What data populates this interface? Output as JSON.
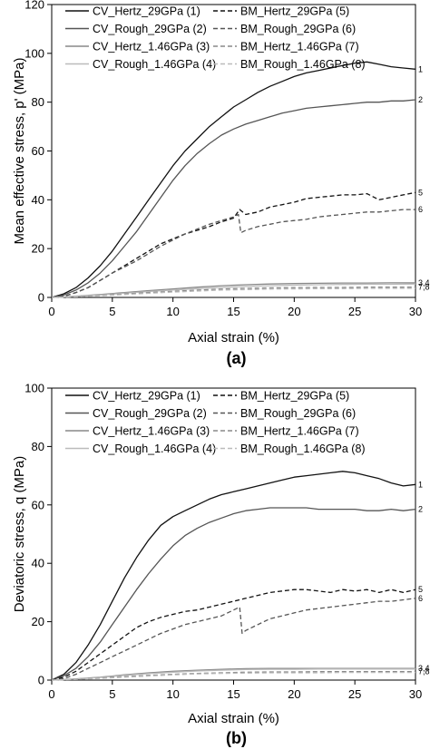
{
  "chart_data": [
    {
      "type": "line",
      "panel_label": "(a)",
      "xlabel": "Axial strain (%)",
      "ylabel": "Mean effective stress, p' (MPa)",
      "xlim": [
        0,
        30
      ],
      "ylim": [
        0,
        120
      ],
      "xticks": [
        0,
        5,
        10,
        15,
        20,
        25,
        30
      ],
      "yticks": [
        0,
        20,
        40,
        60,
        80,
        100,
        120
      ],
      "grid": false,
      "legend_position": "top",
      "series": [
        {
          "name": "CV_Hertz_29GPa",
          "num": "(1)",
          "end_label": "1",
          "color": "#111111",
          "dash": "",
          "x": [
            0,
            1,
            2,
            3,
            4,
            5,
            6,
            7,
            8,
            9,
            10,
            11,
            12,
            13,
            14,
            15,
            16,
            17,
            18,
            19,
            20,
            21,
            22,
            23,
            24,
            25,
            26,
            27,
            28,
            29,
            30
          ],
          "y": [
            0,
            1.5,
            4,
            8,
            13,
            19,
            26,
            33,
            40,
            47,
            54,
            60,
            65,
            70,
            74,
            78,
            81,
            84,
            86.5,
            88.5,
            90.5,
            92,
            93,
            94,
            95,
            96,
            96.5,
            95.5,
            94.5,
            94,
            93.5
          ]
        },
        {
          "name": "CV_Rough_29GPa",
          "num": "(2)",
          "end_label": "2",
          "color": "#555555",
          "dash": "",
          "x": [
            0,
            1,
            2,
            3,
            4,
            5,
            6,
            7,
            8,
            9,
            10,
            11,
            12,
            13,
            14,
            15,
            16,
            17,
            18,
            19,
            20,
            21,
            22,
            23,
            24,
            25,
            26,
            27,
            28,
            29,
            30
          ],
          "y": [
            0,
            1,
            3,
            6,
            10,
            15,
            21,
            27,
            34,
            41,
            48,
            54,
            59,
            63,
            66.5,
            69,
            71,
            72.5,
            74,
            75.5,
            76.5,
            77.5,
            78,
            78.5,
            79,
            79.5,
            80,
            80,
            80.5,
            80.5,
            81
          ]
        },
        {
          "name": "CV_Hertz_1.46GPa",
          "num": "(3)",
          "end_label": "3,4",
          "color": "#888888",
          "dash": "",
          "x": [
            0,
            2,
            4,
            6,
            8,
            10,
            12,
            14,
            16,
            18,
            20,
            22,
            24,
            26,
            28,
            30
          ],
          "y": [
            0,
            0.5,
            1.2,
            2,
            2.8,
            3.5,
            4.2,
            4.8,
            5.2,
            5.5,
            5.7,
            5.8,
            5.9,
            5.9,
            6,
            6
          ]
        },
        {
          "name": "CV_Rough_1.46GPa",
          "num": "(4)",
          "end_label": "",
          "color": "#bbbbbb",
          "dash": "",
          "x": [
            0,
            2,
            4,
            6,
            8,
            10,
            12,
            14,
            16,
            18,
            20,
            22,
            24,
            26,
            28,
            30
          ],
          "y": [
            0,
            0.4,
            1,
            1.7,
            2.4,
            3,
            3.6,
            4.1,
            4.5,
            4.8,
            5,
            5.2,
            5.3,
            5.4,
            5.4,
            5.5
          ]
        },
        {
          "name": "BM_Hertz_29GPa",
          "num": "(5)",
          "end_label": "5",
          "color": "#111111",
          "dash": "5,3",
          "x": [
            0,
            1,
            2,
            3,
            4,
            5,
            6,
            7,
            8,
            9,
            10,
            11,
            12,
            13,
            14,
            15,
            15.5,
            16,
            17,
            18,
            19,
            20,
            21,
            22,
            23,
            24,
            25,
            26,
            27,
            28,
            29,
            30
          ],
          "y": [
            0,
            0.5,
            2,
            4,
            7,
            10,
            13,
            16,
            19,
            22,
            24,
            26,
            27.5,
            29,
            31,
            32.5,
            36,
            34,
            35,
            37,
            38,
            39,
            40.5,
            41,
            41.5,
            42,
            42,
            42.5,
            40,
            41,
            42,
            43
          ]
        },
        {
          "name": "BM_Rough_29GPa",
          "num": "(6)",
          "end_label": "6",
          "color": "#555555",
          "dash": "5,3",
          "x": [
            0,
            1,
            2,
            3,
            4,
            5,
            6,
            7,
            8,
            9,
            10,
            11,
            12,
            13,
            14,
            15,
            15.4,
            15.6,
            16,
            17,
            18,
            19,
            20,
            21,
            22,
            23,
            24,
            25,
            26,
            27,
            28,
            29,
            30
          ],
          "y": [
            0,
            0.5,
            2,
            4,
            7,
            10,
            12.5,
            15,
            18,
            21,
            23.5,
            26,
            28,
            30,
            31.5,
            33,
            34,
            26.5,
            27.5,
            29,
            30,
            31,
            31.5,
            32,
            33,
            33.5,
            34,
            34.5,
            35,
            35,
            35.5,
            36,
            36
          ]
        },
        {
          "name": "BM_Hertz_1.46GPa",
          "num": "(7)",
          "end_label": "7,8",
          "color": "#888888",
          "dash": "5,3",
          "x": [
            0,
            2,
            4,
            6,
            8,
            10,
            12,
            14,
            16,
            18,
            20,
            22,
            24,
            26,
            28,
            30
          ],
          "y": [
            0,
            0.3,
            0.8,
            1.4,
            2,
            2.5,
            3,
            3.4,
            3.7,
            3.9,
            4,
            4.1,
            4.1,
            4.2,
            4.2,
            4.2
          ]
        },
        {
          "name": "BM_Rough_1.46GPa",
          "num": "(8)",
          "end_label": "",
          "color": "#bbbbbb",
          "dash": "5,3",
          "x": [
            0,
            2,
            4,
            6,
            8,
            10,
            12,
            14,
            16,
            18,
            20,
            22,
            24,
            26,
            28,
            30
          ],
          "y": [
            0,
            0.25,
            0.7,
            1.2,
            1.7,
            2.2,
            2.6,
            3,
            3.2,
            3.4,
            3.5,
            3.6,
            3.6,
            3.7,
            3.7,
            3.7
          ]
        }
      ]
    },
    {
      "type": "line",
      "panel_label": "(b)",
      "xlabel": "Axial strain (%)",
      "ylabel": "Deviatoric stress, q (MPa)",
      "xlim": [
        0,
        30
      ],
      "ylim": [
        0,
        100
      ],
      "xticks": [
        0,
        5,
        10,
        15,
        20,
        25,
        30
      ],
      "yticks": [
        0,
        20,
        40,
        60,
        80,
        100
      ],
      "grid": false,
      "legend_position": "top",
      "series": [
        {
          "name": "CV_Hertz_29GPa",
          "num": "(1)",
          "end_label": "1",
          "color": "#111111",
          "dash": "",
          "x": [
            0,
            1,
            2,
            3,
            4,
            5,
            6,
            7,
            8,
            9,
            10,
            11,
            12,
            13,
            14,
            15,
            16,
            17,
            18,
            19,
            20,
            21,
            22,
            23,
            24,
            25,
            26,
            27,
            28,
            29,
            30
          ],
          "y": [
            0,
            2,
            6,
            12,
            19,
            27,
            35,
            42,
            48,
            53,
            56,
            58,
            60,
            62,
            63.5,
            64.5,
            65.5,
            66.5,
            67.5,
            68.5,
            69.5,
            70,
            70.5,
            71,
            71.5,
            71,
            70,
            69,
            67.5,
            66.5,
            67
          ]
        },
        {
          "name": "CV_Rough_29GPa",
          "num": "(2)",
          "end_label": "2",
          "color": "#555555",
          "dash": "",
          "x": [
            0,
            1,
            2,
            3,
            4,
            5,
            6,
            7,
            8,
            9,
            10,
            11,
            12,
            13,
            14,
            15,
            16,
            17,
            18,
            19,
            20,
            21,
            22,
            23,
            24,
            25,
            26,
            27,
            28,
            29,
            30
          ],
          "y": [
            0,
            1.5,
            4,
            8,
            13,
            19,
            25,
            31,
            36.5,
            41.5,
            46,
            49.5,
            52,
            54,
            55.5,
            57,
            58,
            58.5,
            59,
            59,
            59,
            59,
            58.5,
            58.5,
            58.5,
            58.5,
            58,
            58,
            58.5,
            58,
            58.5
          ]
        },
        {
          "name": "CV_Hertz_1.46GPa",
          "num": "(3)",
          "end_label": "3,4",
          "color": "#888888",
          "dash": "",
          "x": [
            0,
            2,
            4,
            6,
            8,
            10,
            12,
            14,
            16,
            18,
            20,
            22,
            24,
            26,
            28,
            30
          ],
          "y": [
            0,
            0.4,
            1,
            1.8,
            2.5,
            3,
            3.4,
            3.7,
            3.9,
            4,
            4,
            4,
            4,
            4,
            4,
            4
          ]
        },
        {
          "name": "CV_Rough_1.46GPa",
          "num": "(4)",
          "end_label": "",
          "color": "#bbbbbb",
          "dash": "",
          "x": [
            0,
            2,
            4,
            6,
            8,
            10,
            12,
            14,
            16,
            18,
            20,
            22,
            24,
            26,
            28,
            30
          ],
          "y": [
            0,
            0.35,
            0.9,
            1.6,
            2.2,
            2.7,
            3.1,
            3.4,
            3.6,
            3.7,
            3.7,
            3.8,
            3.8,
            3.8,
            3.8,
            3.8
          ]
        },
        {
          "name": "BM_Hertz_29GPa",
          "num": "(5)",
          "end_label": "5",
          "color": "#111111",
          "dash": "5,3",
          "x": [
            0,
            1,
            2,
            3,
            4,
            5,
            6,
            7,
            8,
            9,
            10,
            11,
            12,
            13,
            14,
            15,
            16,
            17,
            18,
            19,
            20,
            21,
            22,
            23,
            24,
            25,
            26,
            27,
            28,
            29,
            30
          ],
          "y": [
            0,
            1,
            3,
            6,
            9,
            12,
            15,
            18,
            20,
            21.5,
            22.5,
            23.5,
            24,
            25,
            26,
            27,
            28,
            29,
            30,
            30.5,
            31,
            31,
            30.5,
            30,
            31,
            30.5,
            31,
            30,
            31,
            30,
            31
          ]
        },
        {
          "name": "BM_Rough_29GPa",
          "num": "(6)",
          "end_label": "6",
          "color": "#555555",
          "dash": "5,3",
          "x": [
            0,
            1,
            2,
            3,
            4,
            5,
            6,
            7,
            8,
            9,
            10,
            11,
            12,
            13,
            14,
            15,
            15.5,
            15.7,
            16,
            17,
            18,
            19,
            20,
            21,
            22,
            23,
            24,
            25,
            26,
            27,
            28,
            29,
            30
          ],
          "y": [
            0,
            0.5,
            2,
            4,
            6,
            8,
            10,
            12,
            14,
            16,
            17.5,
            19,
            20,
            21,
            22,
            24,
            25,
            16,
            17,
            19,
            21,
            22,
            23,
            24,
            24.5,
            25,
            25.5,
            26,
            26.5,
            27,
            27,
            27.5,
            28
          ]
        },
        {
          "name": "BM_Hertz_1.46GPa",
          "num": "(7)",
          "end_label": "7,8",
          "color": "#888888",
          "dash": "5,3",
          "x": [
            0,
            2,
            4,
            6,
            8,
            10,
            12,
            14,
            16,
            18,
            20,
            22,
            24,
            26,
            28,
            30
          ],
          "y": [
            0,
            0.3,
            0.7,
            1.2,
            1.6,
            2,
            2.3,
            2.5,
            2.7,
            2.8,
            2.8,
            2.9,
            2.9,
            2.9,
            2.9,
            2.9
          ]
        },
        {
          "name": "BM_Rough_1.46GPa",
          "num": "(8)",
          "end_label": "",
          "color": "#bbbbbb",
          "dash": "5,3",
          "x": [
            0,
            2,
            4,
            6,
            8,
            10,
            12,
            14,
            16,
            18,
            20,
            22,
            24,
            26,
            28,
            30
          ],
          "y": [
            0,
            0.25,
            0.6,
            1,
            1.4,
            1.8,
            2.1,
            2.3,
            2.4,
            2.5,
            2.5,
            2.5,
            2.6,
            2.6,
            2.6,
            2.6
          ]
        }
      ]
    }
  ]
}
